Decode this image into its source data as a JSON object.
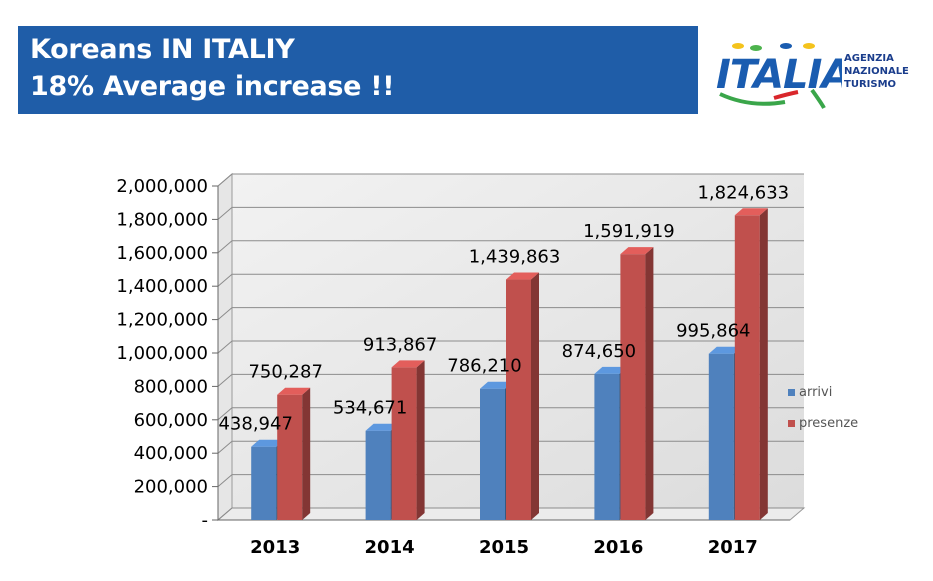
{
  "header": {
    "title_line1": "Koreans IN ITALIY",
    "title_line2": "18% Average increase !!"
  },
  "logo": {
    "wordmark": "ITALIA",
    "agency_lines": [
      "AGENZIA",
      "NAZIONALE",
      "TURISMO"
    ]
  },
  "colors": {
    "banner": "#1f5da8",
    "arrivi": "#4f81bd",
    "presenze": "#c0504d"
  },
  "chart_data": {
    "type": "bar",
    "categories": [
      "2013",
      "2014",
      "2015",
      "2016",
      "2017"
    ],
    "series": [
      {
        "name": "arrivi",
        "values": [
          438947,
          534671,
          786210,
          874650,
          995864
        ],
        "labels": [
          "438,947",
          "534,671",
          "786,210",
          "874,650",
          "995,864"
        ]
      },
      {
        "name": "presenze",
        "values": [
          750287,
          913867,
          1439863,
          1591919,
          1824633
        ],
        "labels": [
          "750,287",
          "913,867",
          "1,439,863",
          "1,591,919",
          "1,824,633"
        ]
      }
    ],
    "ylim": [
      0,
      2000000
    ],
    "yticks": [
      "-",
      "200,000",
      "400,000",
      "600,000",
      "800,000",
      "1,000,000",
      "1,200,000",
      "1,400,000",
      "1,600,000",
      "1,800,000",
      "2,000,000"
    ],
    "grid": true,
    "legend": "right",
    "style": "3d"
  }
}
